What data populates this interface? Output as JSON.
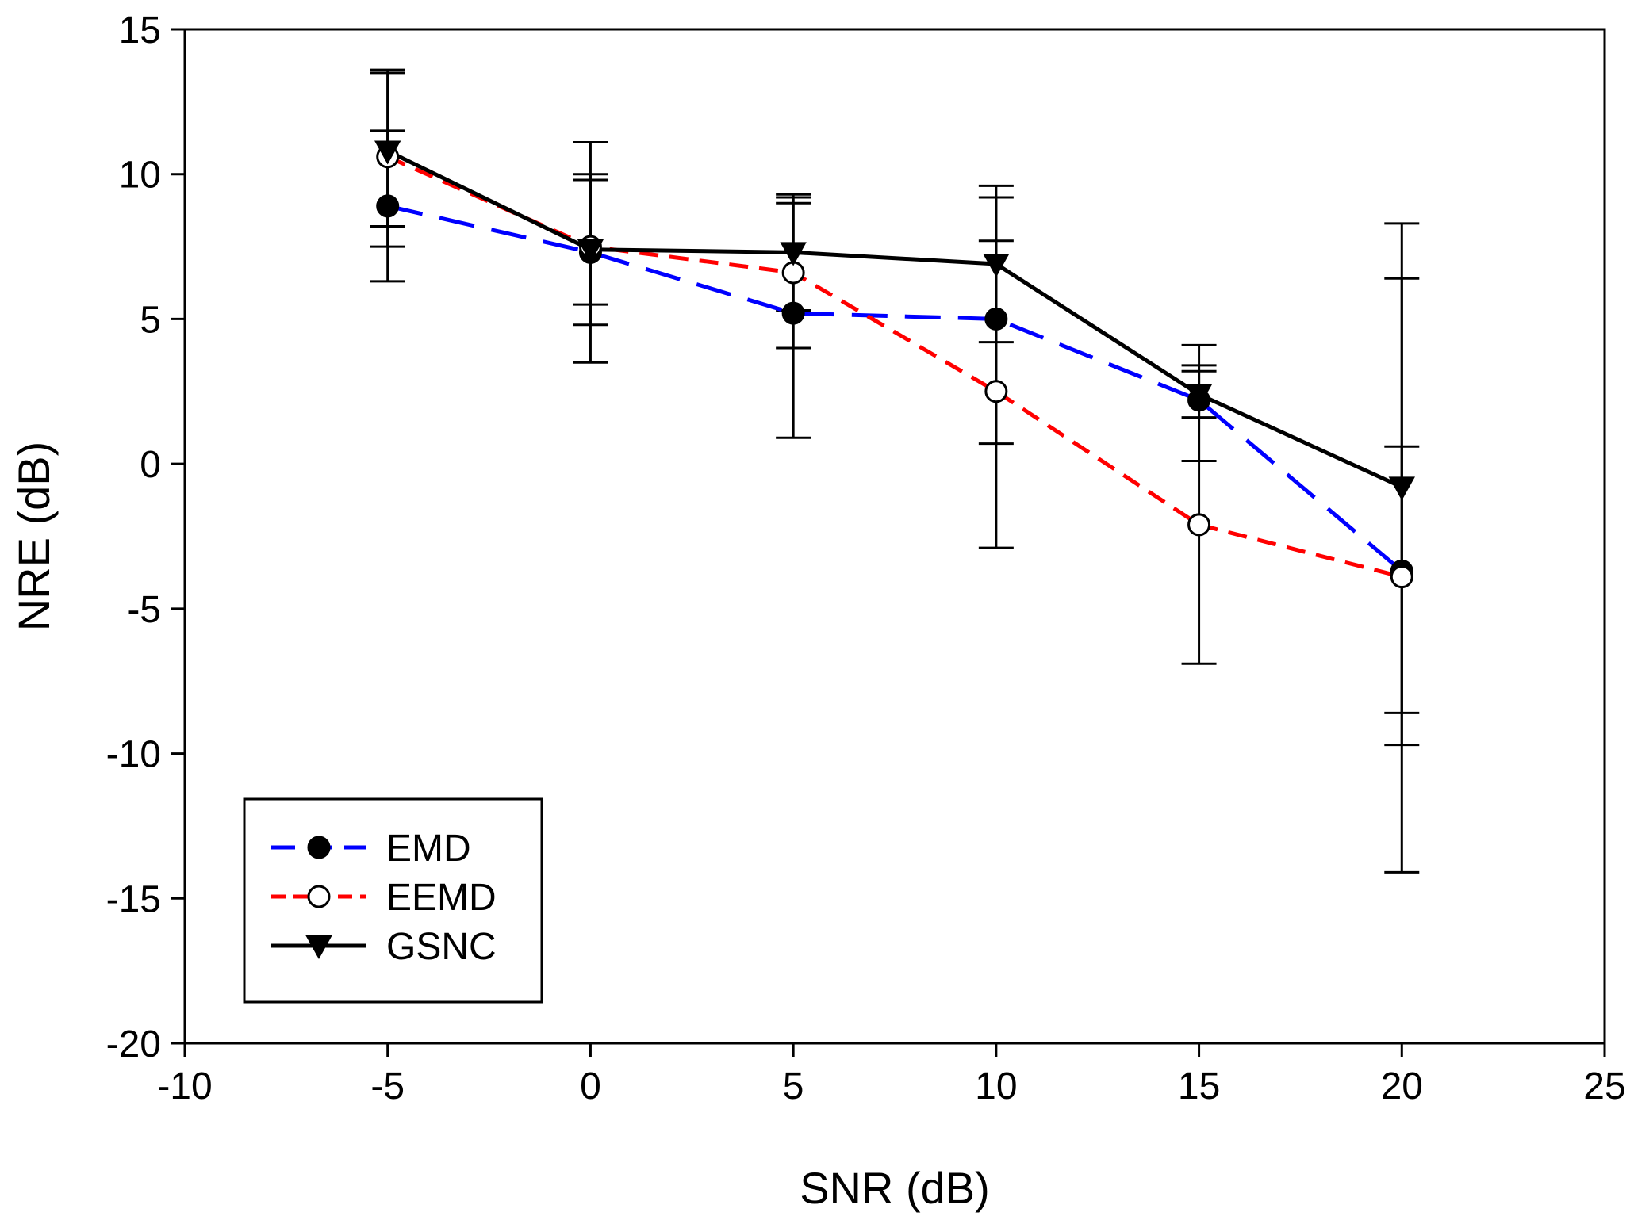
{
  "chart_data": {
    "type": "line",
    "title": "",
    "xlabel": "SNR (dB)",
    "ylabel": "NRE (dB)",
    "xlim": [
      -10,
      25
    ],
    "ylim": [
      -20,
      15
    ],
    "xticks": [
      -10,
      -5,
      0,
      5,
      10,
      15,
      20,
      25
    ],
    "xtick_labels": [
      "-10",
      "-5",
      "0",
      "5",
      "10",
      "15",
      "20",
      "25"
    ],
    "yticks": [
      -20,
      -15,
      -10,
      -5,
      0,
      5,
      10,
      15
    ],
    "ytick_labels": [
      "-20",
      "-15",
      "-10",
      "-5",
      "0",
      "5",
      "10",
      "15"
    ],
    "grid": false,
    "legend_position": "bottom-left",
    "x": [
      -5,
      0,
      5,
      10,
      15,
      20
    ],
    "series": [
      {
        "name": "EMD",
        "color": "#0000ff",
        "line_style": "long-dash",
        "marker": "filled-circle",
        "values": [
          8.9,
          7.3,
          5.2,
          5.0,
          2.2,
          -3.7
        ],
        "err_low": [
          7.5,
          4.8,
          0.9,
          0.7,
          0.1,
          -14.1
        ],
        "err_high": [
          11.5,
          9.8,
          9.3,
          9.2,
          4.1,
          8.3
        ]
      },
      {
        "name": "EEMD",
        "color": "#ff0000",
        "line_style": "short-dash",
        "marker": "open-circle",
        "values": [
          10.6,
          7.5,
          6.6,
          2.5,
          -2.1,
          -3.9
        ],
        "err_low": [
          6.3,
          3.5,
          4.0,
          -2.9,
          -6.9,
          -9.7
        ],
        "err_high": [
          13.6,
          11.1,
          9.0,
          7.7,
          3.2,
          6.4
        ]
      },
      {
        "name": "GSNC",
        "color": "#000000",
        "line_style": "solid",
        "marker": "filled-triangle-down",
        "values": [
          10.8,
          7.4,
          7.3,
          6.9,
          2.4,
          -0.8
        ],
        "err_low": [
          8.2,
          5.5,
          5.3,
          4.2,
          1.6,
          -8.6
        ],
        "err_high": [
          13.5,
          10.0,
          9.2,
          9.6,
          3.4,
          0.6
        ]
      }
    ]
  }
}
